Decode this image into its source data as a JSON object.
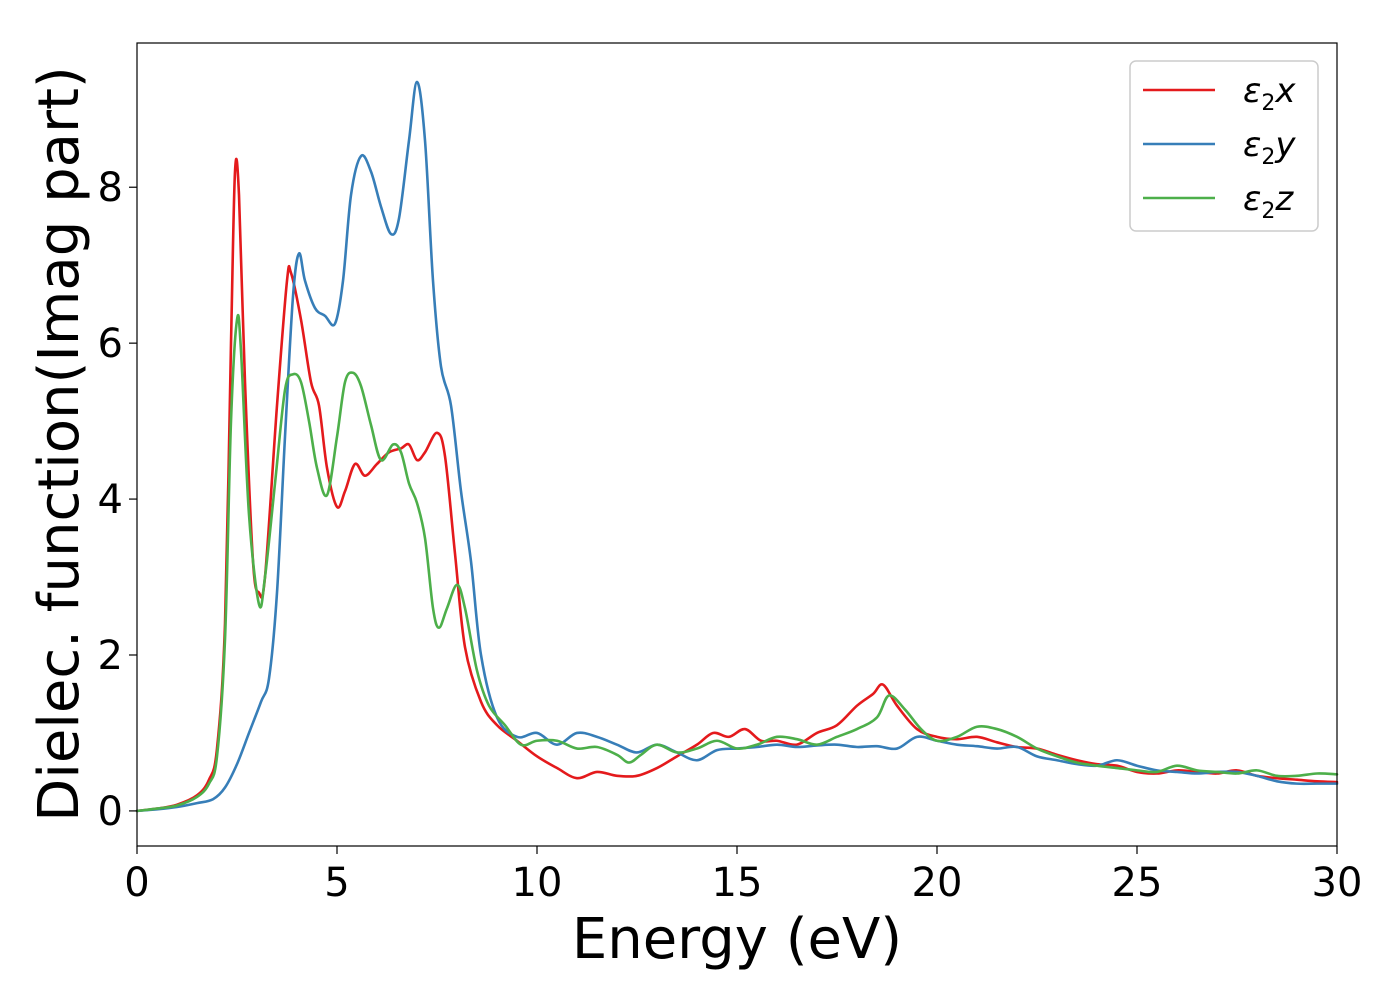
{
  "chart_data": {
    "type": "line",
    "xlabel": "Energy (eV)",
    "ylabel": "Dielec. function(Imag part)",
    "xlim": [
      0,
      30
    ],
    "ylim": [
      -0.45,
      9.85
    ],
    "xticks": [
      0,
      5,
      10,
      15,
      20,
      25,
      30
    ],
    "yticks": [
      0,
      2,
      4,
      6,
      8
    ],
    "grid": false,
    "legend_position": "top-right",
    "series": [
      {
        "name": "ε₂x",
        "label_base": "ε",
        "label_sub": "2",
        "label_tail": "x",
        "color": "#e41a1c",
        "points": [
          [
            0,
            0
          ],
          [
            0.5,
            0.03
          ],
          [
            1,
            0.08
          ],
          [
            1.5,
            0.2
          ],
          [
            1.8,
            0.4
          ],
          [
            2.0,
            0.8
          ],
          [
            2.2,
            2.4
          ],
          [
            2.35,
            6.0
          ],
          [
            2.45,
            8.2
          ],
          [
            2.55,
            7.9
          ],
          [
            2.7,
            5.5
          ],
          [
            2.9,
            3.2
          ],
          [
            3.05,
            2.8
          ],
          [
            3.2,
            3.0
          ],
          [
            3.5,
            5.2
          ],
          [
            3.75,
            6.8
          ],
          [
            3.85,
            6.9
          ],
          [
            4.1,
            6.3
          ],
          [
            4.35,
            5.5
          ],
          [
            4.55,
            5.2
          ],
          [
            4.75,
            4.4
          ],
          [
            5.0,
            3.9
          ],
          [
            5.2,
            4.1
          ],
          [
            5.45,
            4.45
          ],
          [
            5.7,
            4.3
          ],
          [
            6.0,
            4.45
          ],
          [
            6.3,
            4.6
          ],
          [
            6.6,
            4.65
          ],
          [
            6.8,
            4.7
          ],
          [
            7.0,
            4.5
          ],
          [
            7.2,
            4.6
          ],
          [
            7.5,
            4.85
          ],
          [
            7.7,
            4.55
          ],
          [
            7.95,
            3.3
          ],
          [
            8.2,
            2.1
          ],
          [
            8.6,
            1.4
          ],
          [
            9.0,
            1.1
          ],
          [
            9.5,
            0.9
          ],
          [
            10,
            0.7
          ],
          [
            10.5,
            0.55
          ],
          [
            11,
            0.42
          ],
          [
            11.5,
            0.5
          ],
          [
            12.0,
            0.45
          ],
          [
            12.5,
            0.45
          ],
          [
            13,
            0.55
          ],
          [
            13.5,
            0.7
          ],
          [
            14,
            0.85
          ],
          [
            14.4,
            1.0
          ],
          [
            14.8,
            0.95
          ],
          [
            15.2,
            1.05
          ],
          [
            15.6,
            0.9
          ],
          [
            16,
            0.9
          ],
          [
            16.5,
            0.85
          ],
          [
            17,
            1.0
          ],
          [
            17.5,
            1.1
          ],
          [
            18,
            1.35
          ],
          [
            18.4,
            1.5
          ],
          [
            18.65,
            1.62
          ],
          [
            19,
            1.35
          ],
          [
            19.5,
            1.05
          ],
          [
            20,
            0.95
          ],
          [
            20.5,
            0.92
          ],
          [
            21,
            0.95
          ],
          [
            21.5,
            0.88
          ],
          [
            22,
            0.82
          ],
          [
            22.5,
            0.8
          ],
          [
            23,
            0.72
          ],
          [
            23.5,
            0.65
          ],
          [
            24,
            0.6
          ],
          [
            24.5,
            0.58
          ],
          [
            25,
            0.5
          ],
          [
            25.5,
            0.48
          ],
          [
            26,
            0.52
          ],
          [
            26.5,
            0.5
          ],
          [
            27,
            0.48
          ],
          [
            27.5,
            0.52
          ],
          [
            28,
            0.45
          ],
          [
            28.5,
            0.42
          ],
          [
            29,
            0.4
          ],
          [
            29.5,
            0.38
          ],
          [
            30,
            0.37
          ]
        ]
      },
      {
        "name": "ε₂y",
        "label_base": "ε",
        "label_sub": "2",
        "label_tail": "y",
        "color": "#377eb8",
        "points": [
          [
            0,
            0
          ],
          [
            0.5,
            0.02
          ],
          [
            1,
            0.05
          ],
          [
            1.5,
            0.1
          ],
          [
            1.9,
            0.15
          ],
          [
            2.2,
            0.3
          ],
          [
            2.5,
            0.6
          ],
          [
            2.8,
            1.0
          ],
          [
            3.1,
            1.4
          ],
          [
            3.3,
            1.7
          ],
          [
            3.5,
            2.8
          ],
          [
            3.7,
            4.8
          ],
          [
            3.9,
            6.6
          ],
          [
            4.05,
            7.15
          ],
          [
            4.2,
            6.8
          ],
          [
            4.45,
            6.45
          ],
          [
            4.7,
            6.35
          ],
          [
            4.95,
            6.25
          ],
          [
            5.15,
            6.8
          ],
          [
            5.35,
            7.9
          ],
          [
            5.6,
            8.4
          ],
          [
            5.85,
            8.2
          ],
          [
            6.1,
            7.75
          ],
          [
            6.35,
            7.4
          ],
          [
            6.55,
            7.6
          ],
          [
            6.8,
            8.6
          ],
          [
            7.0,
            9.35
          ],
          [
            7.2,
            8.6
          ],
          [
            7.4,
            6.8
          ],
          [
            7.6,
            5.7
          ],
          [
            7.85,
            5.2
          ],
          [
            8.1,
            4.1
          ],
          [
            8.35,
            3.2
          ],
          [
            8.6,
            2.0
          ],
          [
            9.0,
            1.2
          ],
          [
            9.5,
            0.95
          ],
          [
            10,
            1.0
          ],
          [
            10.5,
            0.85
          ],
          [
            11,
            1.0
          ],
          [
            11.5,
            0.95
          ],
          [
            12,
            0.85
          ],
          [
            12.5,
            0.75
          ],
          [
            13,
            0.85
          ],
          [
            13.5,
            0.75
          ],
          [
            14,
            0.65
          ],
          [
            14.5,
            0.78
          ],
          [
            15,
            0.8
          ],
          [
            15.5,
            0.82
          ],
          [
            16,
            0.85
          ],
          [
            16.5,
            0.82
          ],
          [
            17,
            0.84
          ],
          [
            17.5,
            0.85
          ],
          [
            18,
            0.82
          ],
          [
            18.5,
            0.83
          ],
          [
            19,
            0.8
          ],
          [
            19.5,
            0.95
          ],
          [
            20,
            0.9
          ],
          [
            20.5,
            0.85
          ],
          [
            21,
            0.83
          ],
          [
            21.5,
            0.8
          ],
          [
            22,
            0.82
          ],
          [
            22.5,
            0.7
          ],
          [
            23,
            0.65
          ],
          [
            23.5,
            0.6
          ],
          [
            24,
            0.58
          ],
          [
            24.5,
            0.65
          ],
          [
            25,
            0.58
          ],
          [
            25.5,
            0.52
          ],
          [
            26,
            0.5
          ],
          [
            26.5,
            0.48
          ],
          [
            27,
            0.5
          ],
          [
            27.5,
            0.5
          ],
          [
            28,
            0.45
          ],
          [
            28.5,
            0.38
          ],
          [
            29,
            0.35
          ],
          [
            29.5,
            0.35
          ],
          [
            30,
            0.35
          ]
        ]
      },
      {
        "name": "ε₂z",
        "label_base": "ε",
        "label_sub": "2",
        "label_tail": "z",
        "color": "#4daf4a",
        "points": [
          [
            0,
            0
          ],
          [
            0.5,
            0.03
          ],
          [
            1,
            0.07
          ],
          [
            1.5,
            0.18
          ],
          [
            1.8,
            0.35
          ],
          [
            2.0,
            0.7
          ],
          [
            2.2,
            2.2
          ],
          [
            2.35,
            5.0
          ],
          [
            2.5,
            6.3
          ],
          [
            2.6,
            5.9
          ],
          [
            2.8,
            3.8
          ],
          [
            3.05,
            2.65
          ],
          [
            3.2,
            3.0
          ],
          [
            3.45,
            4.2
          ],
          [
            3.7,
            5.4
          ],
          [
            3.9,
            5.6
          ],
          [
            4.1,
            5.5
          ],
          [
            4.3,
            5.0
          ],
          [
            4.5,
            4.4
          ],
          [
            4.75,
            4.05
          ],
          [
            5.0,
            4.8
          ],
          [
            5.2,
            5.5
          ],
          [
            5.4,
            5.62
          ],
          [
            5.6,
            5.45
          ],
          [
            5.85,
            4.95
          ],
          [
            6.1,
            4.5
          ],
          [
            6.4,
            4.7
          ],
          [
            6.6,
            4.6
          ],
          [
            6.8,
            4.2
          ],
          [
            7.0,
            3.95
          ],
          [
            7.2,
            3.5
          ],
          [
            7.4,
            2.6
          ],
          [
            7.55,
            2.35
          ],
          [
            7.75,
            2.6
          ],
          [
            8.0,
            2.9
          ],
          [
            8.2,
            2.6
          ],
          [
            8.5,
            1.8
          ],
          [
            8.8,
            1.35
          ],
          [
            9.2,
            1.1
          ],
          [
            9.6,
            0.85
          ],
          [
            10,
            0.9
          ],
          [
            10.5,
            0.9
          ],
          [
            11,
            0.8
          ],
          [
            11.5,
            0.82
          ],
          [
            12,
            0.72
          ],
          [
            12.3,
            0.62
          ],
          [
            12.6,
            0.72
          ],
          [
            13,
            0.85
          ],
          [
            13.5,
            0.75
          ],
          [
            14,
            0.8
          ],
          [
            14.5,
            0.9
          ],
          [
            15,
            0.8
          ],
          [
            15.5,
            0.85
          ],
          [
            16,
            0.95
          ],
          [
            16.5,
            0.92
          ],
          [
            17,
            0.85
          ],
          [
            17.5,
            0.95
          ],
          [
            18,
            1.05
          ],
          [
            18.5,
            1.2
          ],
          [
            18.8,
            1.48
          ],
          [
            19.2,
            1.3
          ],
          [
            19.6,
            1.05
          ],
          [
            20,
            0.9
          ],
          [
            20.5,
            0.95
          ],
          [
            21,
            1.08
          ],
          [
            21.5,
            1.05
          ],
          [
            22,
            0.95
          ],
          [
            22.5,
            0.8
          ],
          [
            23,
            0.7
          ],
          [
            23.5,
            0.62
          ],
          [
            24,
            0.58
          ],
          [
            24.5,
            0.55
          ],
          [
            25,
            0.52
          ],
          [
            25.5,
            0.5
          ],
          [
            26,
            0.58
          ],
          [
            26.5,
            0.52
          ],
          [
            27,
            0.5
          ],
          [
            27.5,
            0.48
          ],
          [
            28,
            0.52
          ],
          [
            28.5,
            0.45
          ],
          [
            29,
            0.45
          ],
          [
            29.5,
            0.48
          ],
          [
            30,
            0.47
          ]
        ]
      }
    ]
  }
}
